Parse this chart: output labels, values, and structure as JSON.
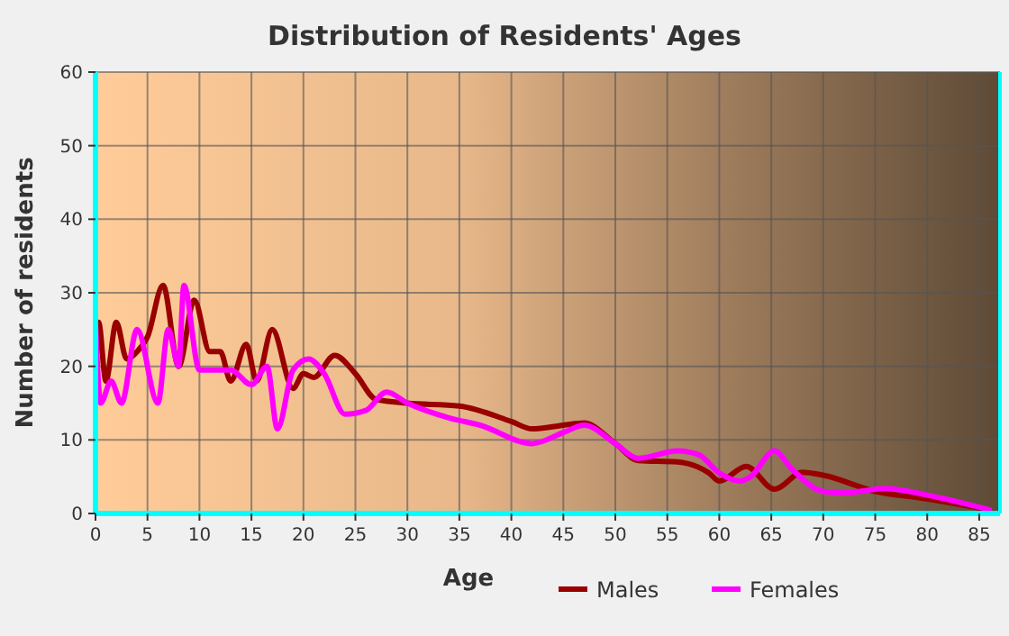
{
  "chart_data": {
    "type": "line",
    "title": "Distribution of Residents' Ages",
    "xlabel": "Age",
    "ylabel": "Number of residents",
    "xlim": [
      0,
      87
    ],
    "xticks": [
      0,
      5,
      10,
      15,
      20,
      25,
      30,
      35,
      40,
      45,
      50,
      55,
      60,
      65,
      70,
      75,
      80,
      85
    ],
    "ylim": [
      0,
      60
    ],
    "yticks": [
      0,
      10,
      20,
      30,
      40,
      50,
      60
    ],
    "grid": true,
    "legend": "bottom",
    "series": [
      {
        "name": "Males",
        "color": "#990000",
        "x": [
          0,
          0.3,
          1,
          2,
          3,
          4,
          5,
          6.5,
          8,
          9.5,
          11,
          12,
          13,
          14.5,
          15.5,
          17,
          19,
          20,
          21,
          23,
          25,
          27,
          30,
          35,
          40,
          42,
          45,
          47,
          50,
          52.2,
          56,
          59,
          60,
          62.6,
          65.3,
          68,
          70,
          75,
          80,
          86
        ],
        "values": [
          18,
          26,
          18,
          26,
          21,
          22,
          24,
          31,
          20,
          29,
          22,
          22,
          18,
          23,
          18,
          25,
          17,
          19,
          18.5,
          21.5,
          19,
          15.5,
          15,
          14.6,
          12.5,
          11.5,
          12,
          12.3,
          9.5,
          7.2,
          7,
          5.5,
          4.4,
          6.4,
          3.3,
          5.6,
          5.2,
          3,
          2,
          0.5
        ]
      },
      {
        "name": "Females",
        "color": "#ff00ff",
        "x": [
          0,
          0.5,
          1.5,
          2.5,
          4,
          6,
          7,
          8,
          8.5,
          10,
          13,
          15,
          16.5,
          17.5,
          19,
          20.5,
          22,
          24,
          26,
          28,
          30,
          34,
          37,
          42,
          45,
          47,
          50,
          52.2,
          56,
          58,
          60,
          62,
          63,
          65.3,
          67,
          70,
          72,
          76,
          80,
          86
        ],
        "values": [
          26,
          15,
          18,
          15,
          25,
          15,
          25,
          20,
          31,
          19.5,
          19.5,
          17.5,
          20,
          11.5,
          19.5,
          21,
          19,
          13.5,
          14,
          16.5,
          15,
          13,
          12,
          9.5,
          11,
          12,
          9.5,
          7.5,
          8.5,
          8,
          5.5,
          4.4,
          5,
          8.5,
          6,
          3,
          2.8,
          3.4,
          2.5,
          0.5
        ]
      }
    ]
  }
}
